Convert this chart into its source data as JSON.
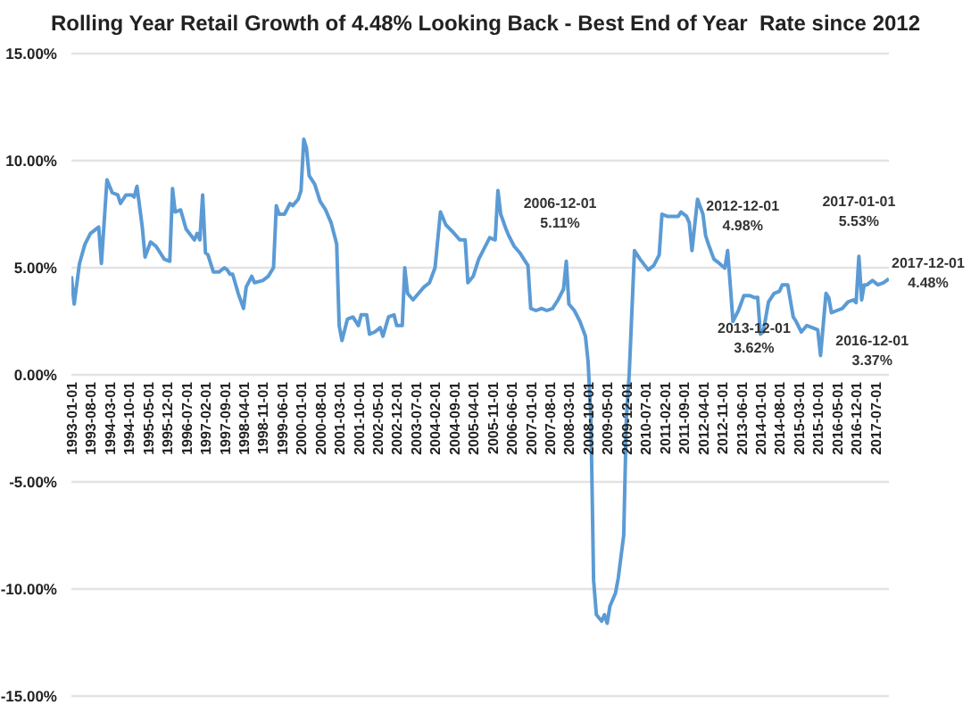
{
  "chart_data": {
    "type": "line",
    "title": "Rolling Year Retail Growth of 4.48% Looking Back - Best End of Year  Rate since 2012",
    "x": [
      "1993-01-01",
      "1993-02-01",
      "1993-04-01",
      "1993-06-01",
      "1993-08-01",
      "1993-10-01",
      "1993-11-01",
      "1993-12-01",
      "1994-02-01",
      "1994-04-01",
      "1994-06-01",
      "1994-07-01",
      "1994-09-01",
      "1994-11-01",
      "1994-12-01",
      "1995-01-01",
      "1995-03-01",
      "1995-04-01",
      "1995-06-01",
      "1995-08-01",
      "1995-11-01",
      "1996-01-01",
      "1996-02-01",
      "1996-03-01",
      "1996-05-01",
      "1996-07-01",
      "1996-10-01",
      "1996-11-01",
      "1996-12-01",
      "1997-01-01",
      "1997-02-01",
      "1997-03-01",
      "1997-05-01",
      "1997-07-01",
      "1997-09-01",
      "1997-10-01",
      "1997-11-01",
      "1997-12-01",
      "1998-02-01",
      "1998-04-01",
      "1998-05-01",
      "1998-07-01",
      "1998-08-01",
      "1998-11-01",
      "1999-01-01",
      "1999-03-01",
      "1999-04-01",
      "1999-05-01",
      "1999-07-01",
      "1999-09-01",
      "1999-10-01",
      "1999-12-01",
      "2000-01-01",
      "2000-02-01",
      "2000-03-01",
      "2000-04-01",
      "2000-06-01",
      "2000-08-01",
      "2000-10-01",
      "2000-12-01",
      "2001-02-01",
      "2001-03-01",
      "2001-04-01",
      "2001-06-01",
      "2001-08-01",
      "2001-10-01",
      "2001-11-01",
      "2002-01-01",
      "2002-02-01",
      "2002-04-01",
      "2002-06-01",
      "2002-07-01",
      "2002-09-01",
      "2002-11-01",
      "2002-12-01",
      "2003-02-01",
      "2003-03-01",
      "2003-04-01",
      "2003-06-01",
      "2003-08-01",
      "2003-10-01",
      "2003-12-01",
      "2004-02-01",
      "2004-04-01",
      "2004-06-01",
      "2004-09-01",
      "2004-11-01",
      "2005-01-01",
      "2005-02-01",
      "2005-04-01",
      "2005-06-01",
      "2005-08-01",
      "2005-10-01",
      "2005-12-01",
      "2006-01-01",
      "2006-02-01",
      "2006-04-01",
      "2006-05-01",
      "2006-07-01",
      "2006-09-01",
      "2006-11-01",
      "2006-12-01",
      "2007-01-01",
      "2007-03-01",
      "2007-05-01",
      "2007-07-01",
      "2007-09-01",
      "2007-11-01",
      "2008-01-01",
      "2008-02-01",
      "2008-03-01",
      "2008-05-01",
      "2008-07-01",
      "2008-09-01",
      "2008-10-01",
      "2008-11-01",
      "2008-12-01",
      "2009-01-01",
      "2009-03-01",
      "2009-04-01",
      "2009-05-01",
      "2009-06-01",
      "2009-08-01",
      "2009-09-01",
      "2009-11-01",
      "2009-12-01",
      "2010-01-01",
      "2010-03-01",
      "2010-05-01",
      "2010-08-01",
      "2010-10-01",
      "2010-12-01",
      "2011-01-01",
      "2011-03-01",
      "2011-05-01",
      "2011-07-01",
      "2011-08-01",
      "2011-10-01",
      "2011-11-01",
      "2011-12-01",
      "2012-02-01",
      "2012-04-01",
      "2012-05-01",
      "2012-06-01",
      "2012-08-01",
      "2012-10-01",
      "2012-12-01",
      "2013-01-01",
      "2013-02-01",
      "2013-03-01",
      "2013-05-01",
      "2013-07-01",
      "2013-09-01",
      "2013-11-01",
      "2013-12-01",
      "2014-01-01",
      "2014-02-01",
      "2014-04-01",
      "2014-06-01",
      "2014-08-01",
      "2014-09-01",
      "2014-11-01",
      "2015-01-01",
      "2015-02-01",
      "2015-04-01",
      "2015-06-01",
      "2015-08-01",
      "2015-10-01",
      "2015-11-01",
      "2016-01-01",
      "2016-02-01",
      "2016-03-01",
      "2016-05-01",
      "2016-07-01",
      "2016-09-01",
      "2016-11-01",
      "2016-12-01",
      "2017-01-01",
      "2017-02-01",
      "2017-03-01",
      "2017-04-01",
      "2017-06-01",
      "2017-08-01",
      "2017-10-01",
      "2017-12-01"
    ],
    "series": [
      {
        "color": "#5b9bd5",
        "values": [
          4.6,
          3.3,
          5.2,
          6.1,
          6.6,
          6.8,
          6.9,
          5.2,
          9.1,
          8.5,
          8.4,
          8.0,
          8.4,
          8.4,
          8.3,
          8.8,
          6.9,
          5.5,
          6.2,
          6.0,
          5.4,
          5.3,
          8.7,
          7.6,
          7.7,
          6.8,
          6.3,
          6.6,
          6.3,
          8.4,
          5.7,
          5.6,
          4.8,
          4.8,
          5.0,
          4.9,
          4.7,
          4.7,
          3.8,
          3.1,
          4.1,
          4.6,
          4.3,
          4.4,
          4.6,
          5.0,
          7.9,
          7.5,
          7.5,
          8.0,
          7.9,
          8.2,
          8.6,
          11.0,
          10.6,
          9.3,
          8.9,
          8.1,
          7.7,
          7.1,
          6.1,
          2.3,
          1.6,
          2.6,
          2.7,
          2.3,
          2.8,
          2.8,
          1.9,
          2.0,
          2.2,
          1.8,
          2.7,
          2.8,
          2.3,
          2.3,
          5.0,
          3.8,
          3.5,
          3.8,
          4.1,
          4.3,
          5.0,
          7.6,
          7.0,
          6.6,
          6.3,
          6.3,
          4.3,
          4.6,
          5.4,
          5.9,
          6.4,
          6.3,
          8.6,
          7.5,
          6.8,
          6.5,
          6.0,
          5.7,
          5.3,
          5.11,
          3.1,
          3.0,
          3.1,
          3.0,
          3.1,
          3.5,
          4.0,
          5.3,
          3.3,
          3.0,
          2.5,
          1.8,
          0.6,
          -2.0,
          -9.6,
          -11.2,
          -11.5,
          -11.2,
          -11.6,
          -10.8,
          -10.2,
          -9.5,
          -7.5,
          -2.0,
          0.0,
          5.8,
          5.4,
          4.9,
          5.1,
          5.6,
          7.5,
          7.4,
          7.4,
          7.4,
          7.6,
          7.4,
          7.1,
          5.8,
          8.2,
          7.5,
          6.5,
          6.1,
          5.4,
          5.2,
          4.98,
          5.8,
          4.1,
          2.5,
          3.0,
          3.7,
          3.7,
          3.6,
          3.62,
          1.9,
          2.0,
          3.4,
          3.8,
          3.9,
          4.2,
          4.2,
          2.7,
          2.5,
          2.0,
          2.3,
          2.2,
          2.1,
          0.9,
          3.8,
          3.6,
          2.9,
          3.0,
          3.1,
          3.4,
          3.5,
          3.37,
          5.53,
          3.5,
          4.2,
          4.2,
          4.4,
          4.2,
          4.3,
          4.48
        ]
      }
    ],
    "xlim": [
      "1993-01-01",
      "2017-12-01"
    ],
    "xticks": [
      "1993-01-01",
      "1993-08-01",
      "1994-03-01",
      "1994-10-01",
      "1995-05-01",
      "1995-12-01",
      "1996-07-01",
      "1997-02-01",
      "1997-09-01",
      "1998-04-01",
      "1998-11-01",
      "1999-06-01",
      "2000-01-01",
      "2000-08-01",
      "2001-03-01",
      "2001-10-01",
      "2002-05-01",
      "2002-12-01",
      "2003-07-01",
      "2004-02-01",
      "2004-09-01",
      "2005-04-01",
      "2005-11-01",
      "2006-06-01",
      "2007-01-01",
      "2007-08-01",
      "2008-03-01",
      "2008-10-01",
      "2009-05-01",
      "2009-12-01",
      "2010-07-01",
      "2011-02-01",
      "2011-09-01",
      "2012-04-01",
      "2012-11-01",
      "2013-06-01",
      "2014-01-01",
      "2014-08-01",
      "2015-03-01",
      "2015-10-01",
      "2016-05-01",
      "2016-12-01",
      "2017-07-01"
    ],
    "ylim": [
      -15,
      15
    ],
    "yticks": [
      {
        "value": -15,
        "label": "-15.00%"
      },
      {
        "value": -10,
        "label": "-10.00%"
      },
      {
        "value": -5,
        "label": "-5.00%"
      },
      {
        "value": 0,
        "label": "0.00%"
      },
      {
        "value": 5,
        "label": "5.00%"
      },
      {
        "value": 10,
        "label": "10.00%"
      },
      {
        "value": 15,
        "label": "15.00%"
      }
    ],
    "grid": "y",
    "marker": "none",
    "line_style": "solid",
    "annotations": [
      {
        "text": "2006-12-01\n5.11%",
        "x": "2006-12-01",
        "y": 5.11
      },
      {
        "text": "2012-12-01\n4.98%",
        "x": "2012-12-01",
        "y": 4.98
      },
      {
        "text": "2013-12-01\n3.62%",
        "x": "2013-12-01",
        "y": 3.62
      },
      {
        "text": "2016-12-01\n3.37%",
        "x": "2016-12-01",
        "y": 3.37
      },
      {
        "text": "2017-01-01\n5.53%",
        "x": "2017-01-01",
        "y": 5.53
      },
      {
        "text": "2017-12-01\n4.48%",
        "x": "2017-12-01",
        "y": 4.48
      }
    ]
  }
}
